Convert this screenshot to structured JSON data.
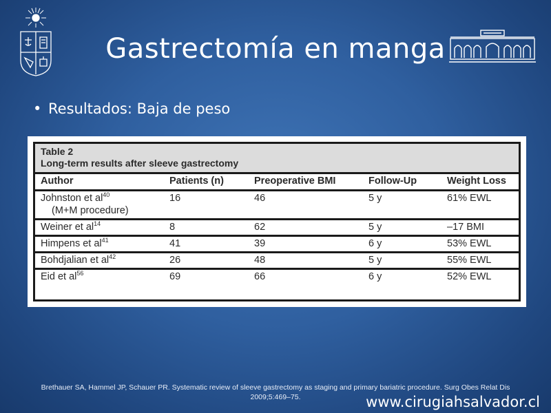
{
  "slide": {
    "title": "Gastrectomía en manga",
    "bullet": "Resultados: Baja de peso"
  },
  "table": {
    "label": "Table 2",
    "caption": "Long-term results after sleeve gastrectomy",
    "columns": [
      "Author",
      "Patients (n)",
      "Preoperative BMI",
      "Follow-Up",
      "Weight Loss"
    ],
    "rows": [
      {
        "author": "Johnston et al",
        "ref": "40",
        "note": "(M+M procedure)",
        "patients": "16",
        "bmi": "46",
        "followup": "5 y",
        "loss": "61% EWL"
      },
      {
        "author": "Weiner et al",
        "ref": "14",
        "patients": "8",
        "bmi": "62",
        "followup": "5 y",
        "loss": "–17 BMI"
      },
      {
        "author": "Himpens et al",
        "ref": "41",
        "patients": "41",
        "bmi": "39",
        "followup": "6 y",
        "loss": "53% EWL"
      },
      {
        "author": "Bohdjalian et al",
        "ref": "42",
        "patients": "26",
        "bmi": "48",
        "followup": "5 y",
        "loss": "55% EWL"
      },
      {
        "author": "Eid et al",
        "ref": "56",
        "patients": "69",
        "bmi": "66",
        "followup": "6 y",
        "loss": "52% EWL"
      }
    ]
  },
  "footer": {
    "citation_line1": "Brethauer SA, Hammel JP, Schauer PR. Systematic review of sleeve gastrectomy as staging and primary bariatric procedure. Surg Obes Relat Dis",
    "citation_line2": "2009;5:469–75.",
    "website": "www.cirugiahsalvador.cl"
  },
  "icons": {
    "left_logo": "university-crest-icon",
    "right_logo": "hospital-building-icon"
  },
  "colors": {
    "background": "#2f5f9f",
    "text": "#ffffff"
  }
}
